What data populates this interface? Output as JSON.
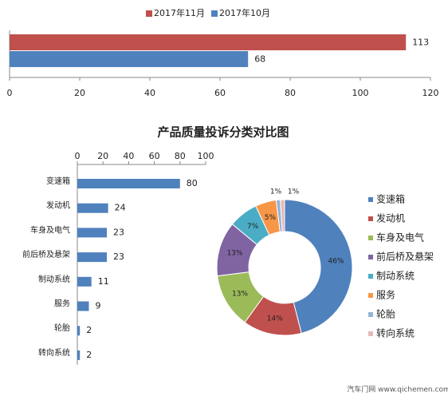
{
  "chart_data": [
    {
      "type": "bar",
      "orientation": "horizontal",
      "categories": [
        null
      ],
      "series": [
        {
          "name": "2017年11月",
          "color": "#c0504d",
          "values": [
            113
          ]
        },
        {
          "name": "2017年10月",
          "color": "#4f81bd",
          "values": [
            68
          ]
        }
      ],
      "xlim": [
        0,
        120
      ],
      "xticks": [
        0,
        20,
        40,
        60,
        80,
        100,
        120
      ],
      "grid": false,
      "legend": "top"
    },
    {
      "type": "bar",
      "orientation": "horizontal",
      "title": "产品质量投诉分类对比图",
      "categories": [
        "变速箱",
        "发动机",
        "车身及电气",
        "前后桥及悬架",
        "制动系统",
        "服务",
        "轮胎",
        "转向系统"
      ],
      "values": [
        80,
        24,
        23,
        23,
        11,
        9,
        2,
        2
      ],
      "color": "#4f81bd",
      "xlim": [
        0,
        100
      ],
      "xticks": [
        0,
        20,
        40,
        60,
        80,
        100
      ],
      "grid": false
    },
    {
      "type": "pie",
      "donut": true,
      "categories": [
        "变速箱",
        "发动机",
        "车身及电气",
        "前后桥及悬架",
        "制动系统",
        "服务",
        "轮胎",
        "转向系统"
      ],
      "values": [
        46,
        14,
        13,
        13,
        7,
        5,
        1,
        1
      ],
      "value_labels": [
        "46%",
        "14%",
        "13%",
        "13%",
        "7%",
        "5%",
        "1%",
        "1%"
      ],
      "colors": [
        "#4f81bd",
        "#c0504d",
        "#9bbb59",
        "#8064a2",
        "#4bacc6",
        "#f79646",
        "#95b3d7",
        "#e6b9b8"
      ],
      "legend": "right",
      "source": "汽车门网 www.qichemen.com"
    }
  ]
}
